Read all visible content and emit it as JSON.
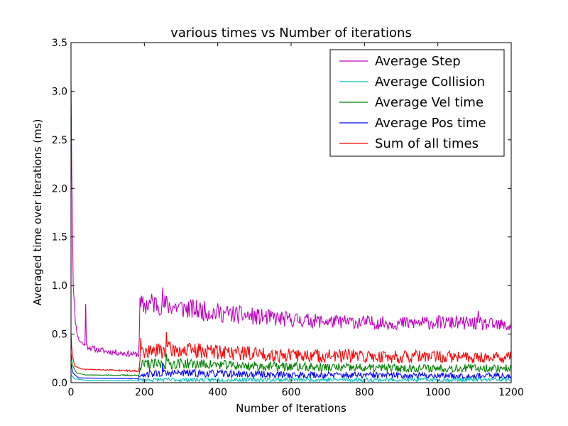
{
  "chart_data": {
    "type": "line",
    "title": "various times vs Number of iterations",
    "xlabel": "Number of Iterations",
    "ylabel": "Averaged time over iterations (ms)",
    "xlim": [
      0,
      1200
    ],
    "ylim": [
      0,
      3.5
    ],
    "x_ticks": [
      0,
      200,
      400,
      600,
      800,
      1000,
      1200
    ],
    "x_tick_labels": [
      "0",
      "200",
      "400",
      "600",
      "800",
      "1000",
      "1200"
    ],
    "y_ticks": [
      0,
      0.5,
      1.0,
      1.5,
      2.0,
      2.5,
      3.0,
      3.5
    ],
    "y_tick_labels": [
      "0.0",
      "0.5",
      "1.0",
      "1.5",
      "2.0",
      "2.5",
      "3.0",
      "3.5"
    ],
    "grid": false,
    "legend_position": "top-right",
    "x_step": 2,
    "series": [
      {
        "name": "Average Step",
        "color": "#bf00bf",
        "profile": [
          [
            0,
            3.1
          ],
          [
            2,
            2.2
          ],
          [
            6,
            1.0
          ],
          [
            12,
            0.62
          ],
          [
            20,
            0.45
          ],
          [
            35,
            0.39
          ],
          [
            60,
            0.35
          ],
          [
            100,
            0.32
          ],
          [
            150,
            0.3
          ],
          [
            185,
            0.29
          ],
          [
            188,
            0.78
          ],
          [
            220,
            0.82
          ],
          [
            260,
            0.8
          ],
          [
            300,
            0.77
          ],
          [
            400,
            0.72
          ],
          [
            500,
            0.68
          ],
          [
            600,
            0.65
          ],
          [
            700,
            0.63
          ],
          [
            800,
            0.62
          ],
          [
            900,
            0.61
          ],
          [
            1000,
            0.62
          ],
          [
            1100,
            0.61
          ],
          [
            1200,
            0.58
          ]
        ],
        "noise": [
          [
            0,
            0.0
          ],
          [
            20,
            0.03
          ],
          [
            185,
            0.03
          ],
          [
            188,
            0.12
          ],
          [
            400,
            0.1
          ],
          [
            700,
            0.07
          ],
          [
            1200,
            0.07
          ]
        ],
        "spikes": [
          [
            40,
            0.81
          ],
          [
            250,
            0.98
          ],
          [
            1025,
            0.77
          ],
          [
            1110,
            0.74
          ]
        ],
        "seed": 11
      },
      {
        "name": "Average Collision",
        "color": "#00bfbf",
        "profile": [
          [
            0,
            0.08
          ],
          [
            10,
            0.04
          ],
          [
            40,
            0.025
          ],
          [
            185,
            0.02
          ],
          [
            188,
            0.03
          ],
          [
            1200,
            0.03
          ]
        ],
        "noise": [
          [
            0,
            0.0
          ],
          [
            185,
            0.005
          ],
          [
            188,
            0.02
          ],
          [
            1200,
            0.02
          ]
        ],
        "spikes": [],
        "seed": 23
      },
      {
        "name": "Average Vel time",
        "color": "#008000",
        "profile": [
          [
            0,
            0.3
          ],
          [
            4,
            0.18
          ],
          [
            15,
            0.1
          ],
          [
            40,
            0.08
          ],
          [
            185,
            0.075
          ],
          [
            188,
            0.18
          ],
          [
            300,
            0.2
          ],
          [
            500,
            0.17
          ],
          [
            800,
            0.15
          ],
          [
            1200,
            0.15
          ]
        ],
        "noise": [
          [
            0,
            0.0
          ],
          [
            185,
            0.008
          ],
          [
            188,
            0.06
          ],
          [
            400,
            0.05
          ],
          [
            1200,
            0.04
          ]
        ],
        "spikes": [
          [
            260,
            0.3
          ]
        ],
        "seed": 37
      },
      {
        "name": "Average Pos time",
        "color": "#0000ff",
        "profile": [
          [
            0,
            0.2
          ],
          [
            5,
            0.1
          ],
          [
            20,
            0.05
          ],
          [
            185,
            0.04
          ],
          [
            188,
            0.09
          ],
          [
            300,
            0.1
          ],
          [
            600,
            0.08
          ],
          [
            1200,
            0.07
          ]
        ],
        "noise": [
          [
            0,
            0.0
          ],
          [
            185,
            0.006
          ],
          [
            188,
            0.04
          ],
          [
            1200,
            0.03
          ]
        ],
        "spikes": [
          [
            250,
            0.2
          ]
        ],
        "seed": 53
      },
      {
        "name": "Sum of all times",
        "color": "#ff0000",
        "profile": [
          [
            0,
            0.5
          ],
          [
            3,
            0.3
          ],
          [
            10,
            0.17
          ],
          [
            30,
            0.14
          ],
          [
            185,
            0.12
          ],
          [
            188,
            0.3
          ],
          [
            260,
            0.34
          ],
          [
            400,
            0.32
          ],
          [
            600,
            0.28
          ],
          [
            800,
            0.27
          ],
          [
            1200,
            0.26
          ]
        ],
        "noise": [
          [
            0,
            0.0
          ],
          [
            185,
            0.01
          ],
          [
            188,
            0.09
          ],
          [
            400,
            0.08
          ],
          [
            1200,
            0.06
          ]
        ],
        "spikes": [
          [
            40,
            0.13
          ],
          [
            260,
            0.52
          ],
          [
            190,
            0.46
          ]
        ],
        "seed": 71
      }
    ]
  }
}
